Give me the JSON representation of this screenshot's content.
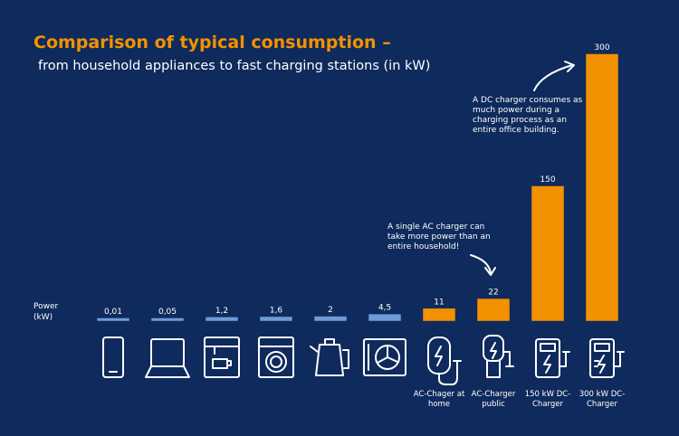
{
  "chart_data": {
    "type": "bar",
    "title": "Comparison of typical consumption –",
    "subtitle": "from household appliances to fast charging stations (in kW)",
    "y_label": "Power (kW)",
    "categories": [
      null,
      null,
      null,
      null,
      null,
      null,
      "AC-Chager at home",
      "AC-Charger public",
      "150 kW DC-Charger",
      "300 kW DC-Charger"
    ],
    "values": [
      0.01,
      0.05,
      1.2,
      1.6,
      2,
      4.5,
      11,
      22,
      150,
      300
    ],
    "value_labels": [
      "0,01",
      "0,05",
      "1,2",
      "1,6",
      "2",
      "4,5",
      "11",
      "22",
      "150",
      "300"
    ],
    "colors": [
      "#6f9bd6",
      "#6f9bd6",
      "#6f9bd6",
      "#6f9bd6",
      "#6f9bd6",
      "#6f9bd6",
      "#f39200",
      "#f39200",
      "#f39200",
      "#f39200"
    ],
    "annotations": [
      "A single AC charger can take more power than an entire household!",
      "A DC charger consumes as much power during a charging process as an entire office building."
    ]
  }
}
